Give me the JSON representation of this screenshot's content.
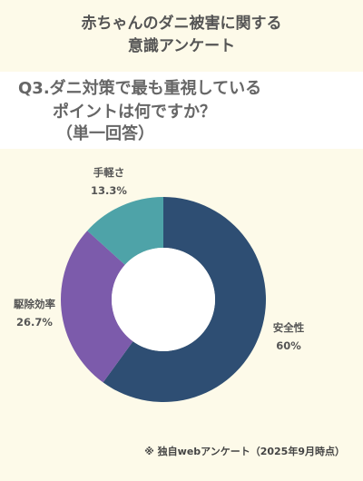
{
  "title": {
    "line1": "赤ちゃんのダニ被害に関する",
    "line2": "意識アンケート"
  },
  "question": {
    "line1": "Q3.ダニ対策で最も重視している",
    "line2": "ポイントは何ですか？",
    "line3": "（単一回答）"
  },
  "chart_data": {
    "type": "pie",
    "donut": true,
    "slices": [
      {
        "label": "安全性",
        "value": 60,
        "value_label": "60%",
        "color": "#2e4e73"
      },
      {
        "label": "駆除効率",
        "value": 26.7,
        "value_label": "26.7%",
        "color": "#7c5bab"
      },
      {
        "label": "手軽さ",
        "value": 13.3,
        "value_label": "13.3%",
        "color": "#4ea3a8"
      }
    ],
    "start": "12 o'clock",
    "direction": "clockwise"
  },
  "footnote": "※ 独自webアンケート（2025年9月時点）"
}
